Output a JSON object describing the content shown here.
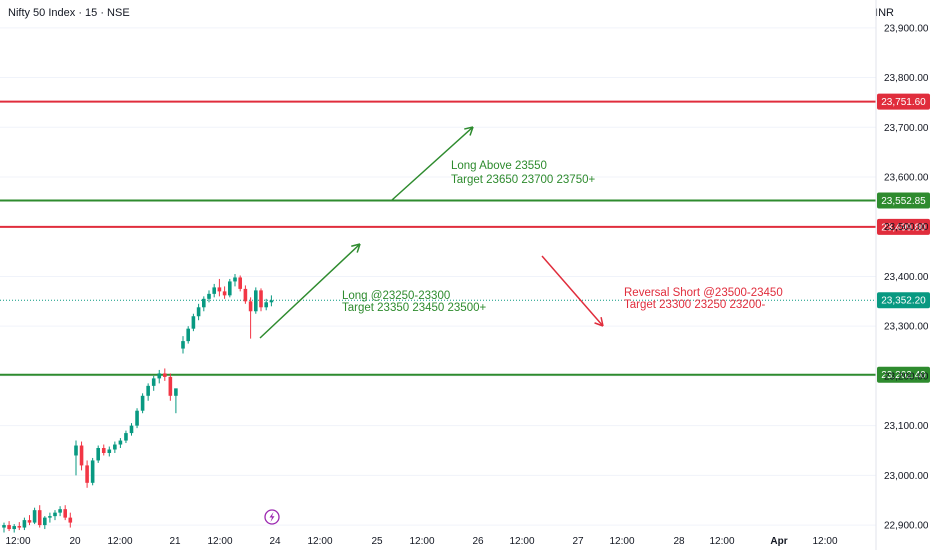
{
  "header": {
    "title": "Nifty 50 Index · 15 · NSE",
    "currency": "INR"
  },
  "colors": {
    "up": "#089981",
    "down": "#f23645",
    "green": "#2e8b2e",
    "red": "#e02d3c",
    "text": "#131722",
    "grid": "#f0f3fa"
  },
  "chart_data": {
    "type": "candlestick",
    "y_axis": {
      "ylim": [
        22870,
        23960
      ],
      "ticks": [
        {
          "value": 22900,
          "label": "22,900.00"
        },
        {
          "value": 23000,
          "label": "23,000.00"
        },
        {
          "value": 23100,
          "label": "23,100.00"
        },
        {
          "value": 23200,
          "label": "23,200.00"
        },
        {
          "value": 23300,
          "label": "23,300.00"
        },
        {
          "value": 23400,
          "label": "23,400.00"
        },
        {
          "value": 23500,
          "label": "23,500.00"
        },
        {
          "value": 23600,
          "label": "23,600.00"
        },
        {
          "value": 23700,
          "label": "23,700.00"
        },
        {
          "value": 23800,
          "label": "23,800.00"
        },
        {
          "value": 23900,
          "label": "23,900.00"
        }
      ]
    },
    "x_axis": {
      "labels": [
        "12:00",
        "20",
        "12:00",
        "21",
        "12:00",
        "24",
        "12:00",
        "25",
        "12:00",
        "26",
        "12:00",
        "27",
        "12:00",
        "28",
        "12:00",
        "Apr",
        "12:00"
      ]
    },
    "levels": [
      {
        "value": 23751.6,
        "label": "23,751.60",
        "color": "red"
      },
      {
        "value": 23552.85,
        "label": "23,552.85",
        "color": "green"
      },
      {
        "value": 23499.8,
        "label": "23,499.80",
        "color": "red"
      },
      {
        "value": 23202.4,
        "label": "23,202.40",
        "color": "green"
      }
    ],
    "last_price": {
      "value": 23352.2,
      "label": "23,352.20"
    },
    "candles": [
      [
        22895,
        22905,
        22885,
        22900
      ],
      [
        22900,
        22908,
        22888,
        22892
      ],
      [
        22892,
        22902,
        22885,
        22898
      ],
      [
        22898,
        22906,
        22890,
        22895
      ],
      [
        22895,
        22915,
        22890,
        22910
      ],
      [
        22910,
        22920,
        22900,
        22905
      ],
      [
        22905,
        22935,
        22902,
        22930
      ],
      [
        22930,
        22940,
        22895,
        22900
      ],
      [
        22900,
        22918,
        22892,
        22915
      ],
      [
        22915,
        22925,
        22905,
        22918
      ],
      [
        22918,
        22930,
        22910,
        22925
      ],
      [
        22925,
        22938,
        22918,
        22932
      ],
      [
        22932,
        22940,
        22910,
        22915
      ],
      [
        22915,
        22925,
        22895,
        22905
      ],
      [
        23040,
        23070,
        23000,
        23060
      ],
      [
        23060,
        23068,
        23010,
        23020
      ],
      [
        23020,
        23030,
        22975,
        22985
      ],
      [
        22985,
        23035,
        22980,
        23030
      ],
      [
        23030,
        23060,
        23025,
        23055
      ],
      [
        23055,
        23062,
        23040,
        23045
      ],
      [
        23045,
        23058,
        23038,
        23052
      ],
      [
        23052,
        23068,
        23045,
        23062
      ],
      [
        23062,
        23075,
        23055,
        23070
      ],
      [
        23070,
        23090,
        23065,
        23085
      ],
      [
        23085,
        23105,
        23080,
        23100
      ],
      [
        23100,
        23135,
        23095,
        23130
      ],
      [
        23130,
        23165,
        23125,
        23160
      ],
      [
        23160,
        23185,
        23150,
        23180
      ],
      [
        23180,
        23200,
        23170,
        23195
      ],
      [
        23195,
        23212,
        23185,
        23205
      ],
      [
        23205,
        23215,
        23190,
        23198
      ],
      [
        23198,
        23205,
        23150,
        23160
      ],
      [
        23160,
        23172,
        23125,
        23175
      ],
      [
        23255,
        23280,
        23245,
        23270
      ],
      [
        23270,
        23300,
        23265,
        23295
      ],
      [
        23295,
        23325,
        23290,
        23320
      ],
      [
        23320,
        23345,
        23312,
        23338
      ],
      [
        23338,
        23360,
        23330,
        23355
      ],
      [
        23355,
        23372,
        23348,
        23365
      ],
      [
        23365,
        23385,
        23358,
        23378
      ],
      [
        23378,
        23395,
        23360,
        23370
      ],
      [
        23370,
        23380,
        23355,
        23362
      ],
      [
        23362,
        23395,
        23358,
        23390
      ],
      [
        23390,
        23405,
        23380,
        23398
      ],
      [
        23398,
        23402,
        23370,
        23375
      ],
      [
        23375,
        23382,
        23345,
        23350
      ],
      [
        23350,
        23358,
        23275,
        23330
      ],
      [
        23330,
        23378,
        23325,
        23372
      ],
      [
        23372,
        23376,
        23330,
        23338
      ],
      [
        23338,
        23355,
        23332,
        23348
      ],
      [
        23348,
        23362,
        23340,
        23352
      ]
    ],
    "annotations": [
      {
        "text": "Long Above 23550",
        "color": "green"
      },
      {
        "text": "Target 23650 23700 23750+",
        "color": "green"
      },
      {
        "text": "Long @23250-23300",
        "color": "green"
      },
      {
        "text": "Target 23350 23450 23500+",
        "color": "green"
      },
      {
        "text": "Reversal Short @23500-23450",
        "color": "red"
      },
      {
        "text": "Target 23300 23250 23200-",
        "color": "red"
      }
    ],
    "marker_icon": "lightning-icon"
  }
}
